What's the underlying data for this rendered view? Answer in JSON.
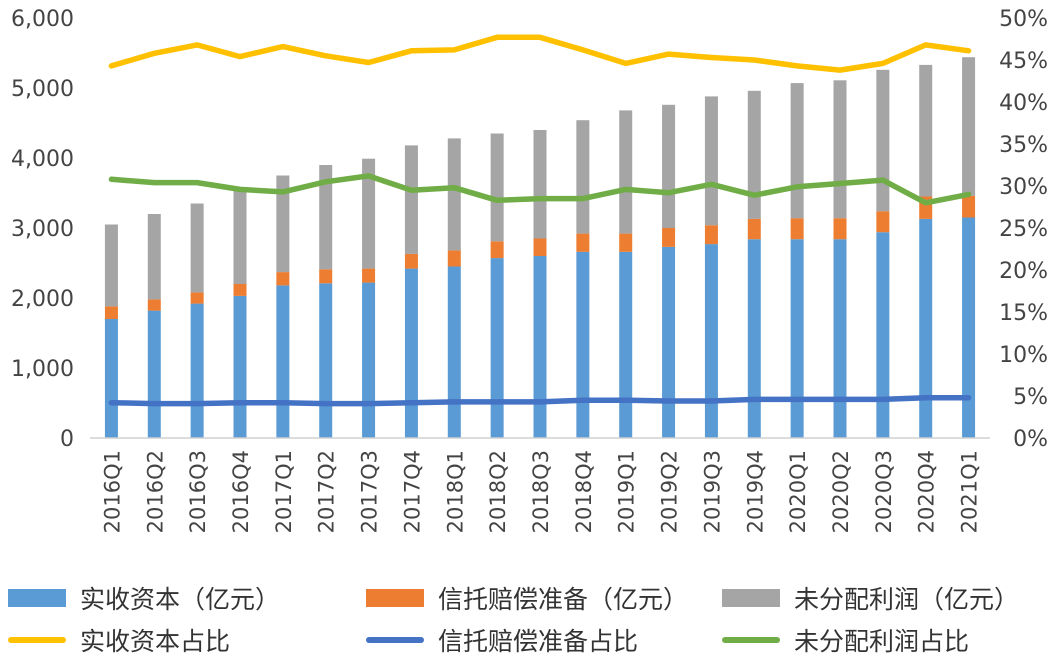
{
  "chart_data": {
    "type": "bar",
    "categories": [
      "2016Q1",
      "2016Q2",
      "2016Q3",
      "2016Q4",
      "2017Q1",
      "2017Q2",
      "2017Q3",
      "2017Q4",
      "2018Q1",
      "2018Q2",
      "2018Q3",
      "2018Q4",
      "2019Q1",
      "2019Q2",
      "2019Q3",
      "2019Q4",
      "2020Q1",
      "2020Q2",
      "2020Q3",
      "2020Q4",
      "2021Q1"
    ],
    "bar_series": [
      {
        "name": "实收资本（亿元）",
        "color": "#5b9bd5",
        "values": [
          1700,
          1820,
          1920,
          2030,
          2180,
          2210,
          2220,
          2420,
          2450,
          2570,
          2600,
          2660,
          2660,
          2730,
          2770,
          2840,
          2840,
          2840,
          2940,
          3130,
          3150
        ]
      },
      {
        "name": "信托赔偿准备（亿元）",
        "color": "#ed7d31",
        "values": [
          180,
          160,
          160,
          170,
          190,
          200,
          200,
          210,
          230,
          240,
          250,
          260,
          260,
          270,
          270,
          290,
          300,
          300,
          300,
          320,
          310
        ]
      },
      {
        "name": "未分配利润（亿元）",
        "color": "#a5a5a5",
        "values": [
          1170,
          1220,
          1270,
          1340,
          1380,
          1490,
          1570,
          1550,
          1600,
          1540,
          1550,
          1620,
          1760,
          1760,
          1840,
          1830,
          1930,
          1970,
          2020,
          1880,
          1980
        ]
      }
    ],
    "line_series": [
      {
        "name": "实收资本占比",
        "color": "#ffc000",
        "values": [
          44.3,
          45.8,
          46.8,
          45.4,
          46.6,
          45.5,
          44.7,
          46.1,
          46.2,
          47.7,
          47.7,
          46.2,
          44.6,
          45.7,
          45.3,
          45.0,
          44.3,
          43.8,
          44.6,
          46.8,
          46.1
        ]
      },
      {
        "name": "信托赔偿准备占比",
        "color": "#4472c4",
        "values": [
          4.2,
          4.1,
          4.1,
          4.2,
          4.2,
          4.1,
          4.1,
          4.2,
          4.3,
          4.3,
          4.3,
          4.5,
          4.5,
          4.4,
          4.4,
          4.6,
          4.6,
          4.6,
          4.6,
          4.8,
          4.8
        ]
      },
      {
        "name": "未分配利润占比",
        "color": "#70ad47",
        "values": [
          30.8,
          30.4,
          30.4,
          29.6,
          29.3,
          30.5,
          31.2,
          29.5,
          29.8,
          28.3,
          28.5,
          28.5,
          29.6,
          29.2,
          30.2,
          28.9,
          29.9,
          30.3,
          30.7,
          28.0,
          29.0
        ]
      }
    ],
    "y_left": {
      "ylim": [
        0,
        6000
      ],
      "ticks": [
        "0",
        "1,000",
        "2,000",
        "3,000",
        "4,000",
        "5,000",
        "6,000"
      ],
      "tick_values": [
        0,
        1000,
        2000,
        3000,
        4000,
        5000,
        6000
      ]
    },
    "y_right": {
      "ylim": [
        0,
        50
      ],
      "ticks": [
        "0%",
        "5%",
        "10%",
        "15%",
        "20%",
        "25%",
        "30%",
        "35%",
        "40%",
        "45%",
        "50%"
      ],
      "tick_values": [
        0,
        5,
        10,
        15,
        20,
        25,
        30,
        35,
        40,
        45,
        50
      ]
    },
    "title": "",
    "xlabel": "",
    "ylabel": "",
    "grid": false,
    "legend_position": "bottom"
  },
  "legend": [
    {
      "label": "实收资本（亿元）",
      "kind": "box",
      "color": "#5b9bd5"
    },
    {
      "label": "信托赔偿准备（亿元）",
      "kind": "box",
      "color": "#ed7d31"
    },
    {
      "label": "未分配利润（亿元）",
      "kind": "box",
      "color": "#a5a5a5"
    },
    {
      "label": "实收资本占比",
      "kind": "line",
      "color": "#ffc000"
    },
    {
      "label": "信托赔偿准备占比",
      "kind": "line",
      "color": "#4472c4"
    },
    {
      "label": "未分配利润占比",
      "kind": "line",
      "color": "#70ad47"
    }
  ]
}
